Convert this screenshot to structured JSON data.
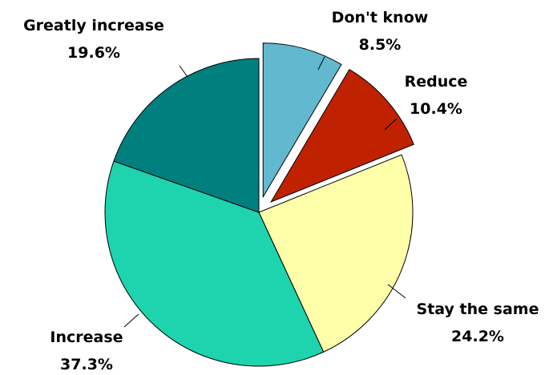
{
  "chart_data": {
    "type": "pie",
    "title": "",
    "slices": [
      {
        "label": "Don't know",
        "value": 8.5,
        "display": "8.5%",
        "color": "#62b8cf",
        "exploded": true
      },
      {
        "label": "Reduce",
        "value": 10.4,
        "display": "10.4%",
        "color": "#c02200",
        "exploded": true
      },
      {
        "label": "Stay the same",
        "value": 24.2,
        "display": "24.2%",
        "color": "#ffffaa",
        "exploded": false
      },
      {
        "label": "Increase",
        "value": 37.3,
        "display": "37.3%",
        "color": "#1dd4ae",
        "exploded": false
      },
      {
        "label": "Greatly increase",
        "value": 19.6,
        "display": "19.6%",
        "color": "#007f7f",
        "exploded": false
      }
    ],
    "legend": "none",
    "data_labels": "outside with leader lines"
  }
}
